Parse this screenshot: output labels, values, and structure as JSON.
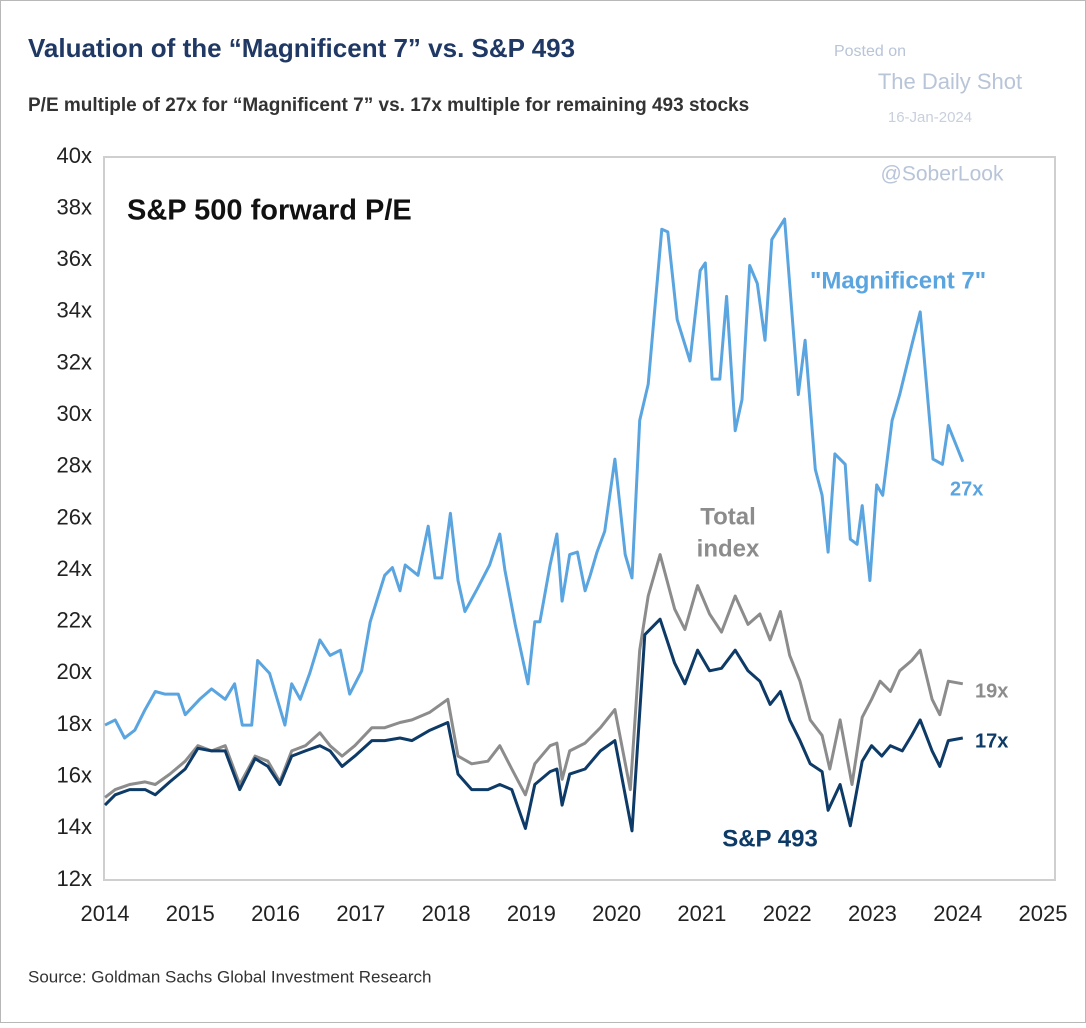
{
  "chart_data": {
    "type": "line",
    "title": "Valuation of the “Magnificent 7” vs. S&P 493",
    "subtitle": "P/E multiple of 27x for “Magnificent 7” vs. 17x multiple for remaining 493 stocks",
    "source": "Source: Goldman Sachs Global Investment Research",
    "watermark": [
      "Posted on",
      "The Daily Shot",
      "16-Jan-2024",
      "@SoberLook"
    ],
    "xlim": [
      2014,
      2025
    ],
    "xticks": [
      2014,
      2015,
      2016,
      2017,
      2018,
      2019,
      2020,
      2021,
      2022,
      2023,
      2024,
      2025
    ],
    "ylim": [
      12,
      40
    ],
    "yticks": [
      {
        "value": 12,
        "label": "12x"
      },
      {
        "value": 14,
        "label": "14x"
      },
      {
        "value": 16,
        "label": "16x"
      },
      {
        "value": 18,
        "label": "18x"
      },
      {
        "value": 20,
        "label": "20x"
      },
      {
        "value": 22,
        "label": "22x"
      },
      {
        "value": 24,
        "label": "24x"
      },
      {
        "value": 26,
        "label": "26x"
      },
      {
        "value": 28,
        "label": "28x"
      },
      {
        "value": 30,
        "label": "30x"
      },
      {
        "value": 32,
        "label": "32x"
      },
      {
        "value": 34,
        "label": "34x"
      },
      {
        "value": 36,
        "label": "36x"
      },
      {
        "value": 38,
        "label": "38x"
      },
      {
        "value": 40,
        "label": "40x"
      }
    ],
    "grid": false,
    "annotations": [
      {
        "lines": [
          "S&P 500 forward P/E"
        ],
        "color": "#111111"
      },
      {
        "lines": [
          "\"Magnificent 7\""
        ],
        "color": "#5aa5e0"
      },
      {
        "lines": [
          "27x"
        ],
        "color": "#5aa5e0"
      },
      {
        "lines": [
          "Total",
          "index"
        ],
        "color": "#8c8c8c"
      },
      {
        "lines": [
          "19x"
        ],
        "color": "#8c8c8c"
      },
      {
        "lines": [
          "S&P 493"
        ],
        "color": "#0d3a66"
      },
      {
        "lines": [
          "17x"
        ],
        "color": "#0d3a66"
      }
    ],
    "series": [
      {
        "name": "\"Magnificent 7\"",
        "color": "#5aa5e0",
        "x": [
          2014.0,
          2014.12,
          2014.23,
          2014.35,
          2014.47,
          2014.59,
          2014.7,
          2014.86,
          2014.94,
          2015.11,
          2015.25,
          2015.41,
          2015.52,
          2015.61,
          2015.72,
          2015.79,
          2015.93,
          2016.11,
          2016.19,
          2016.29,
          2016.4,
          2016.52,
          2016.64,
          2016.76,
          2016.87,
          2017.01,
          2017.11,
          2017.28,
          2017.37,
          2017.46,
          2017.52,
          2017.67,
          2017.79,
          2017.87,
          2017.95,
          2018.05,
          2018.14,
          2018.22,
          2018.37,
          2018.51,
          2018.63,
          2018.69,
          2018.81,
          2018.96,
          2019.04,
          2019.1,
          2019.22,
          2019.3,
          2019.36,
          2019.45,
          2019.54,
          2019.63,
          2019.69,
          2019.77,
          2019.86,
          2019.98,
          2020.1,
          2020.18,
          2020.27,
          2020.37,
          2020.53,
          2020.6,
          2020.71,
          2020.86,
          2020.98,
          2021.04,
          2021.12,
          2021.21,
          2021.29,
          2021.39,
          2021.47,
          2021.56,
          2021.65,
          2021.74,
          2021.82,
          2021.97,
          2022.13,
          2022.21,
          2022.33,
          2022.41,
          2022.48,
          2022.56,
          2022.68,
          2022.74,
          2022.82,
          2022.88,
          2022.97,
          2023.05,
          2023.12,
          2023.23,
          2023.32,
          2023.46,
          2023.56,
          2023.71,
          2023.82,
          2023.89,
          2024.06
        ],
        "values": [
          18.0,
          18.2,
          17.5,
          17.8,
          18.6,
          19.3,
          19.2,
          19.2,
          18.4,
          19.0,
          19.4,
          19.0,
          19.6,
          18.0,
          18.0,
          20.5,
          20.0,
          18.0,
          19.6,
          19.0,
          20.0,
          21.3,
          20.7,
          20.9,
          19.2,
          20.1,
          22.0,
          23.8,
          24.1,
          23.2,
          24.2,
          23.8,
          25.7,
          23.7,
          23.7,
          26.2,
          23.6,
          22.4,
          23.3,
          24.2,
          25.4,
          24.0,
          21.9,
          19.6,
          22.0,
          22.0,
          24.2,
          25.4,
          22.8,
          24.6,
          24.7,
          23.2,
          23.8,
          24.7,
          25.5,
          28.3,
          24.6,
          23.7,
          29.8,
          31.2,
          37.2,
          37.1,
          33.7,
          32.1,
          35.6,
          35.9,
          31.4,
          31.4,
          34.6,
          29.4,
          30.6,
          35.8,
          35.1,
          32.9,
          36.8,
          37.6,
          30.8,
          32.9,
          27.9,
          26.9,
          24.7,
          28.5,
          28.1,
          25.2,
          25.0,
          26.5,
          23.6,
          27.3,
          26.9,
          29.8,
          30.8,
          32.7,
          34.0,
          28.3,
          28.1,
          29.6,
          28.2
        ]
      },
      {
        "name": "Total index",
        "color": "#8c8c8c",
        "x": [
          2014.0,
          2014.12,
          2014.29,
          2014.47,
          2014.59,
          2014.76,
          2014.94,
          2015.09,
          2015.25,
          2015.41,
          2015.58,
          2015.76,
          2015.91,
          2016.05,
          2016.19,
          2016.35,
          2016.52,
          2016.64,
          2016.78,
          2016.93,
          2017.13,
          2017.28,
          2017.46,
          2017.6,
          2017.81,
          2018.02,
          2018.14,
          2018.3,
          2018.49,
          2018.63,
          2018.77,
          2018.93,
          2019.04,
          2019.22,
          2019.3,
          2019.36,
          2019.45,
          2019.63,
          2019.81,
          2019.98,
          2020.16,
          2020.27,
          2020.37,
          2020.51,
          2020.68,
          2020.8,
          2020.95,
          2021.09,
          2021.23,
          2021.39,
          2021.54,
          2021.68,
          2021.8,
          2021.92,
          2022.03,
          2022.15,
          2022.27,
          2022.41,
          2022.5,
          2022.62,
          2022.76,
          2022.88,
          2022.99,
          2023.09,
          2023.21,
          2023.32,
          2023.46,
          2023.56,
          2023.7,
          2023.79,
          2023.89,
          2024.06
        ],
        "values": [
          15.2,
          15.5,
          15.7,
          15.8,
          15.7,
          16.1,
          16.6,
          17.2,
          17.0,
          17.2,
          15.7,
          16.8,
          16.6,
          15.8,
          17.0,
          17.2,
          17.7,
          17.2,
          16.8,
          17.2,
          17.9,
          17.9,
          18.1,
          18.2,
          18.5,
          19.0,
          16.8,
          16.5,
          16.6,
          17.2,
          16.3,
          15.3,
          16.5,
          17.2,
          17.3,
          15.9,
          17.0,
          17.3,
          17.9,
          18.6,
          15.5,
          20.9,
          23.0,
          24.6,
          22.5,
          21.7,
          23.4,
          22.3,
          21.6,
          23.0,
          21.9,
          22.3,
          21.3,
          22.4,
          20.7,
          19.7,
          18.2,
          17.6,
          16.3,
          18.2,
          15.7,
          18.3,
          19.0,
          19.7,
          19.3,
          20.1,
          20.5,
          20.9,
          19.0,
          18.4,
          19.7,
          19.6
        ]
      },
      {
        "name": "S&P 493",
        "color": "#0d3a66",
        "x": [
          2014.0,
          2014.12,
          2014.29,
          2014.47,
          2014.59,
          2014.76,
          2014.94,
          2015.09,
          2015.25,
          2015.41,
          2015.58,
          2015.76,
          2015.91,
          2016.05,
          2016.19,
          2016.35,
          2016.52,
          2016.64,
          2016.78,
          2016.93,
          2017.13,
          2017.28,
          2017.46,
          2017.6,
          2017.81,
          2018.02,
          2018.14,
          2018.3,
          2018.49,
          2018.63,
          2018.77,
          2018.93,
          2019.04,
          2019.22,
          2019.3,
          2019.36,
          2019.45,
          2019.63,
          2019.81,
          2019.98,
          2020.18,
          2020.33,
          2020.51,
          2020.68,
          2020.8,
          2020.95,
          2021.09,
          2021.23,
          2021.39,
          2021.54,
          2021.68,
          2021.8,
          2021.92,
          2022.03,
          2022.15,
          2022.27,
          2022.41,
          2022.48,
          2022.62,
          2022.74,
          2022.88,
          2022.99,
          2023.11,
          2023.21,
          2023.35,
          2023.46,
          2023.56,
          2023.7,
          2023.79,
          2023.89,
          2024.06
        ],
        "values": [
          14.9,
          15.3,
          15.5,
          15.5,
          15.3,
          15.8,
          16.3,
          17.1,
          17.0,
          17.0,
          15.5,
          16.7,
          16.4,
          15.7,
          16.8,
          17.0,
          17.2,
          17.0,
          16.4,
          16.8,
          17.4,
          17.4,
          17.5,
          17.4,
          17.8,
          18.1,
          16.1,
          15.5,
          15.5,
          15.7,
          15.5,
          14.0,
          15.7,
          16.2,
          16.3,
          14.9,
          16.1,
          16.3,
          17.0,
          17.4,
          13.9,
          21.5,
          22.1,
          20.4,
          19.6,
          20.9,
          20.1,
          20.2,
          20.9,
          20.1,
          19.7,
          18.8,
          19.3,
          18.2,
          17.4,
          16.5,
          16.2,
          14.7,
          15.7,
          14.1,
          16.6,
          17.2,
          16.8,
          17.2,
          17.0,
          17.6,
          18.2,
          17.0,
          16.4,
          17.4,
          17.5
        ]
      }
    ]
  }
}
